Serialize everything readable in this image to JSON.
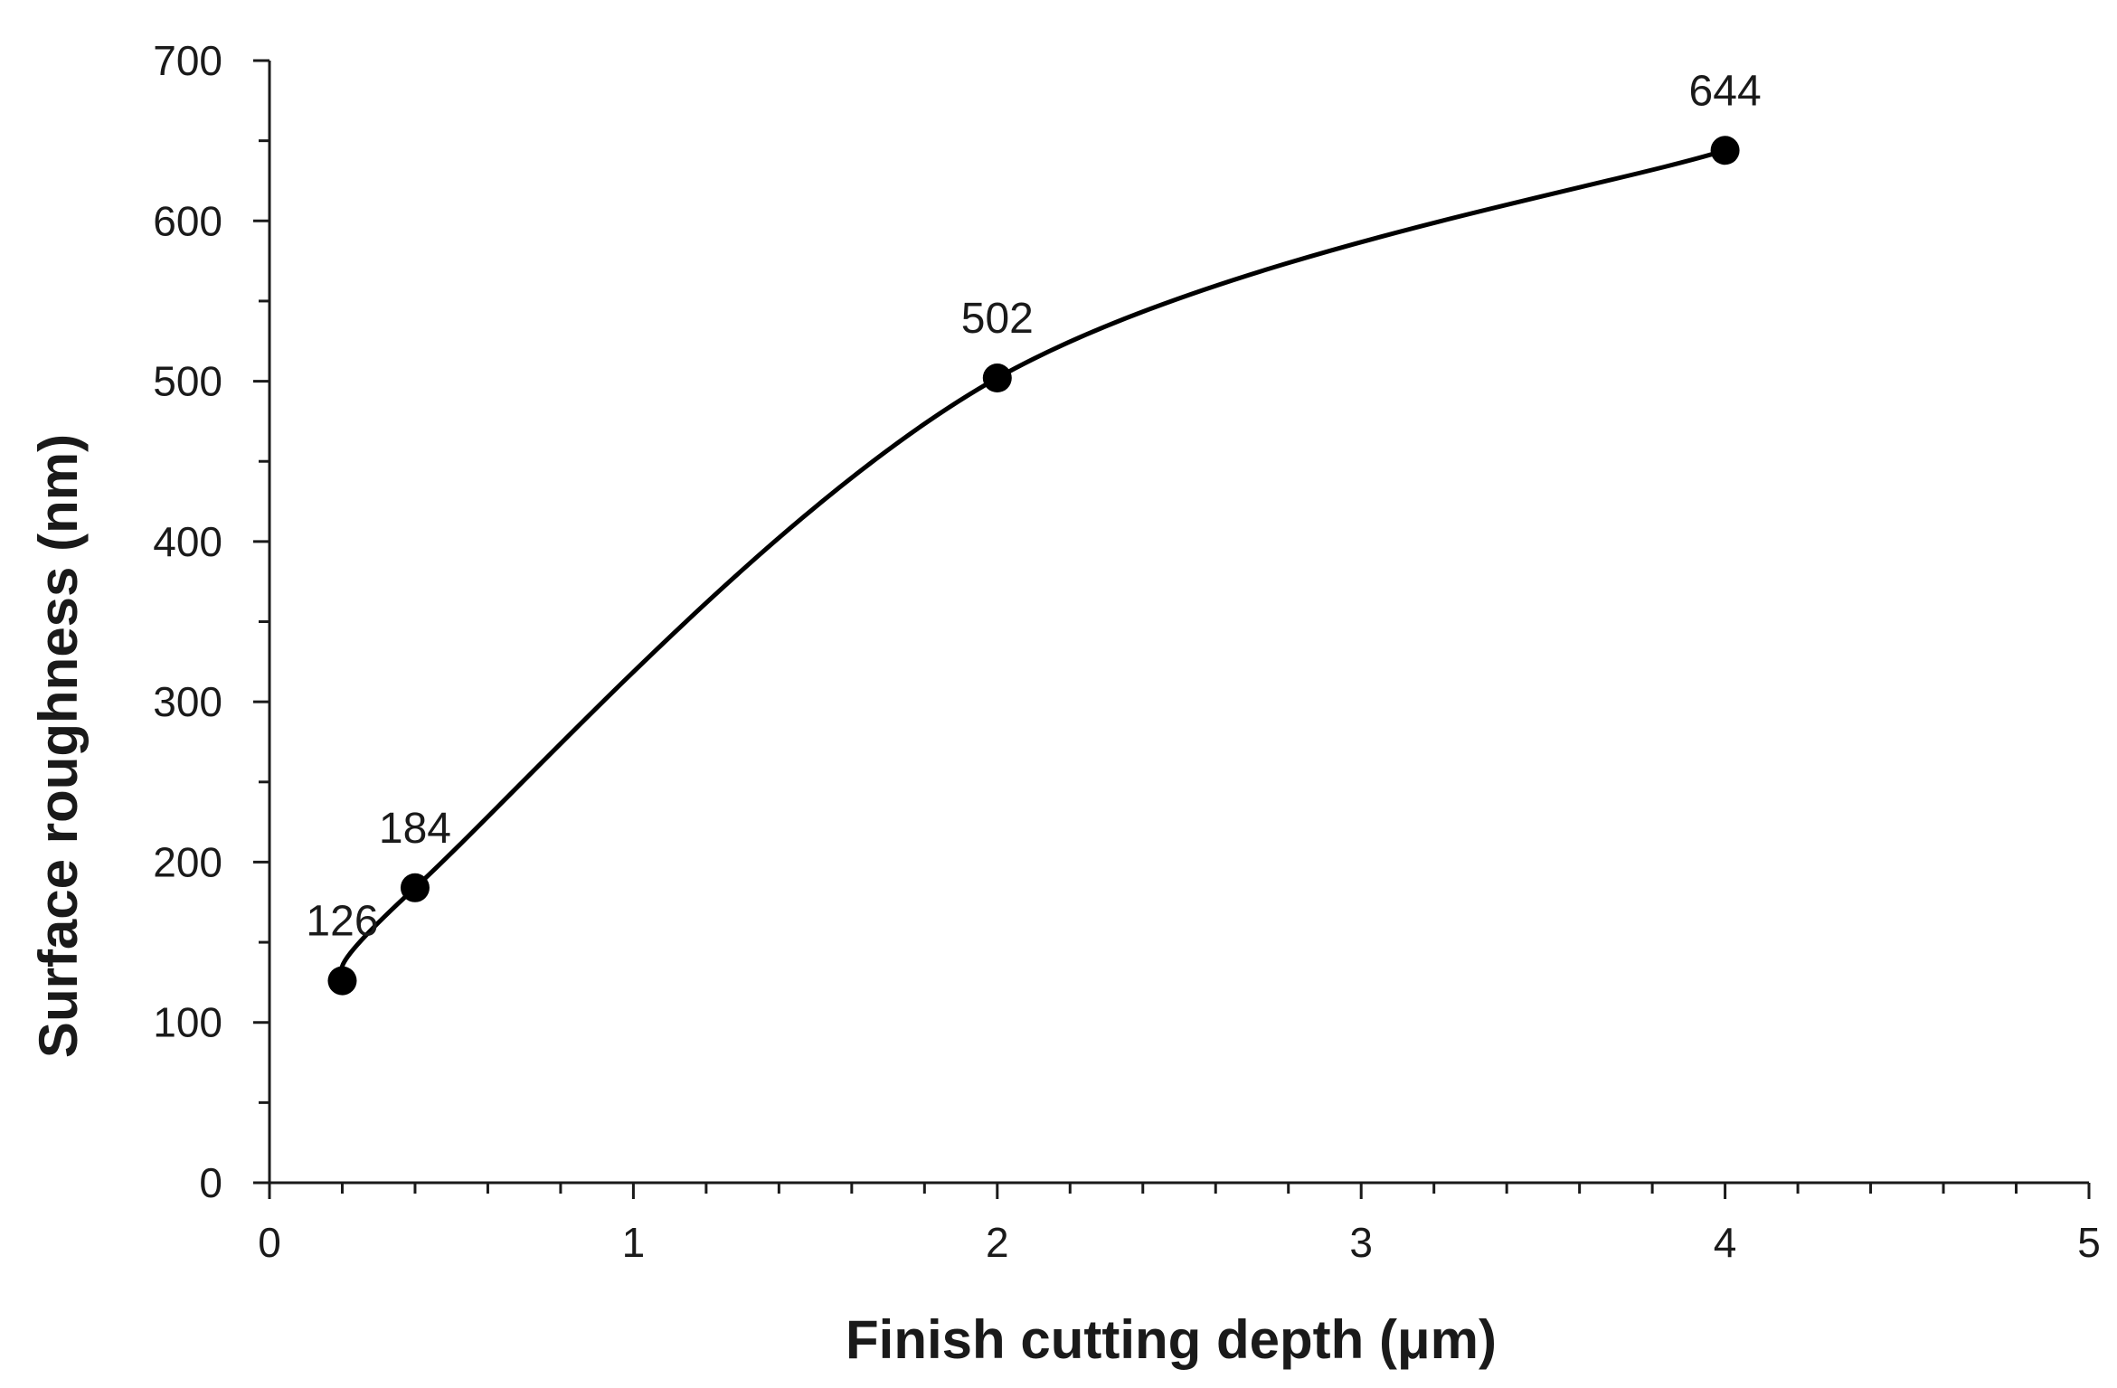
{
  "chart_data": {
    "type": "line",
    "title": "",
    "xlabel": "Finish cutting depth (μm)",
    "ylabel": "Surface roughness (nm)",
    "xlim": [
      0,
      5
    ],
    "ylim": [
      0,
      700
    ],
    "x_major_ticks": [
      0,
      1,
      2,
      3,
      4,
      5
    ],
    "x_minor_step": 0.2,
    "y_major_ticks": [
      0,
      100,
      200,
      300,
      400,
      500,
      600,
      700
    ],
    "y_minor_step": 50,
    "grid": false,
    "smooth": true,
    "line_color": "#000000",
    "marker": "circle",
    "series": [
      {
        "x": [
          0.2,
          0.4,
          2,
          4
        ],
        "y": [
          126,
          184,
          502,
          644
        ],
        "data_labels": [
          "126",
          "184",
          "502",
          "644"
        ]
      }
    ]
  }
}
